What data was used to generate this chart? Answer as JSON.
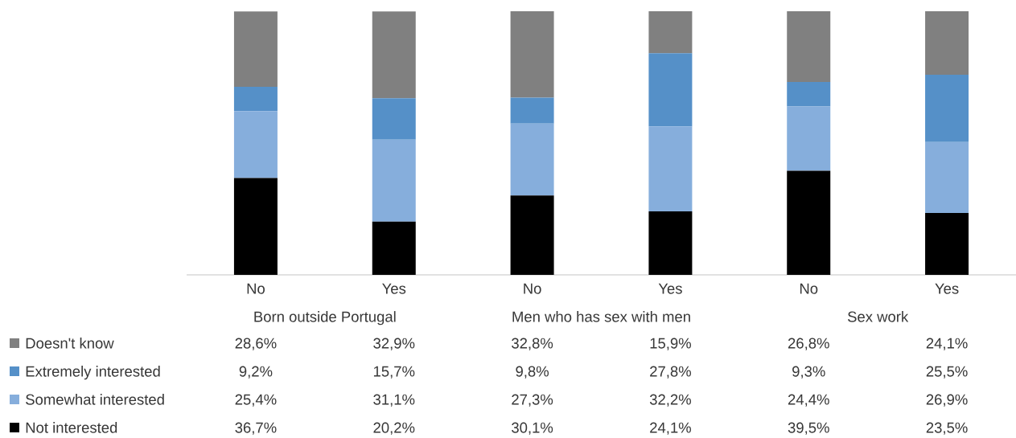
{
  "chart_data": {
    "type": "bar",
    "stacked": true,
    "categories": [
      "No",
      "Yes",
      "No",
      "Yes",
      "No",
      "Yes"
    ],
    "annotations": [
      "Born outside Portugal",
      "Men who has sex with men",
      "Sex work"
    ],
    "series": [
      {
        "name": "Not interested",
        "color": "#000000",
        "values": [
          36.7,
          20.2,
          30.1,
          24.1,
          39.5,
          23.5
        ],
        "value_labels": [
          "36,7%",
          "20,2%",
          "30,1%",
          "24,1%",
          "39,5%",
          "23,5%"
        ]
      },
      {
        "name": "Somewhat interested",
        "color": "#86aedc",
        "values": [
          25.4,
          31.1,
          27.3,
          32.2,
          24.4,
          26.9
        ],
        "value_labels": [
          "25,4%",
          "31,1%",
          "27,3%",
          "32,2%",
          "24,4%",
          "26,9%"
        ]
      },
      {
        "name": "Extremely interested",
        "color": "#5590c8",
        "values": [
          9.2,
          15.7,
          9.8,
          27.8,
          9.3,
          25.5
        ],
        "value_labels": [
          "9,2%",
          "15,7%",
          "9,8%",
          "27,8%",
          "9,3%",
          "25,5%"
        ]
      },
      {
        "name": "Doesn't know",
        "color": "#808080",
        "values": [
          28.6,
          32.9,
          32.8,
          15.9,
          26.8,
          24.1
        ],
        "value_labels": [
          "28,6%",
          "32,9%",
          "32,8%",
          "15,9%",
          "26,8%",
          "24,1%"
        ]
      }
    ],
    "ylim": [
      0,
      100
    ],
    "tick_labels": "x",
    "legend": "bottom left"
  }
}
